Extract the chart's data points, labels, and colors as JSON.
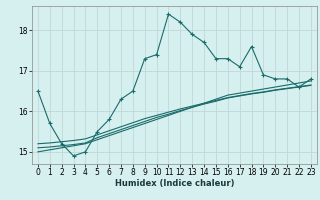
{
  "xlabel": "Humidex (Indice chaleur)",
  "background_color": "#d6f0ef",
  "grid_color": "#c0d8d8",
  "line_color": "#1a6b6b",
  "xlim": [
    -0.5,
    23.5
  ],
  "ylim": [
    14.7,
    18.6
  ],
  "yticks": [
    15,
    16,
    17,
    18
  ],
  "xticks": [
    0,
    1,
    2,
    3,
    4,
    5,
    6,
    7,
    8,
    9,
    10,
    11,
    12,
    13,
    14,
    15,
    16,
    17,
    18,
    19,
    20,
    21,
    22,
    23
  ],
  "series": [
    {
      "x": [
        0,
        1,
        2,
        3,
        4,
        5,
        6,
        7,
        8,
        9,
        10,
        11,
        12,
        13,
        14,
        15,
        16,
        17,
        18,
        19,
        20,
        21,
        22,
        23
      ],
      "y": [
        16.5,
        15.7,
        15.2,
        14.9,
        15.0,
        15.5,
        15.8,
        16.3,
        16.5,
        17.3,
        17.4,
        18.4,
        18.2,
        17.9,
        17.7,
        17.3,
        17.3,
        17.1,
        17.6,
        16.9,
        16.8,
        16.8,
        16.6,
        16.8
      ],
      "markers": true
    },
    {
      "x": [
        0,
        1,
        2,
        3,
        4,
        5,
        6,
        7,
        8,
        9,
        10,
        11,
        12,
        13,
        14,
        15,
        16,
        17,
        18,
        19,
        20,
        21,
        22,
        23
      ],
      "y": [
        15.0,
        15.05,
        15.1,
        15.15,
        15.2,
        15.3,
        15.4,
        15.5,
        15.6,
        15.7,
        15.8,
        15.9,
        16.0,
        16.1,
        16.2,
        16.3,
        16.4,
        16.45,
        16.5,
        16.55,
        16.6,
        16.65,
        16.7,
        16.75
      ],
      "markers": false
    },
    {
      "x": [
        0,
        1,
        2,
        3,
        4,
        5,
        6,
        7,
        8,
        9,
        10,
        11,
        12,
        13,
        14,
        15,
        16,
        17,
        18,
        19,
        20,
        21,
        22,
        23
      ],
      "y": [
        15.1,
        15.12,
        15.15,
        15.18,
        15.22,
        15.35,
        15.45,
        15.55,
        15.65,
        15.75,
        15.85,
        15.93,
        16.02,
        16.1,
        16.18,
        16.25,
        16.33,
        16.38,
        16.43,
        16.47,
        16.52,
        16.56,
        16.6,
        16.64
      ],
      "markers": false
    },
    {
      "x": [
        0,
        1,
        2,
        3,
        4,
        5,
        6,
        7,
        8,
        9,
        10,
        11,
        12,
        13,
        14,
        15,
        16,
        17,
        18,
        19,
        20,
        21,
        22,
        23
      ],
      "y": [
        15.2,
        15.22,
        15.25,
        15.28,
        15.32,
        15.42,
        15.52,
        15.62,
        15.72,
        15.82,
        15.9,
        15.98,
        16.06,
        16.13,
        16.2,
        16.27,
        16.34,
        16.39,
        16.44,
        16.48,
        16.53,
        16.57,
        16.61,
        16.65
      ],
      "markers": false
    }
  ]
}
